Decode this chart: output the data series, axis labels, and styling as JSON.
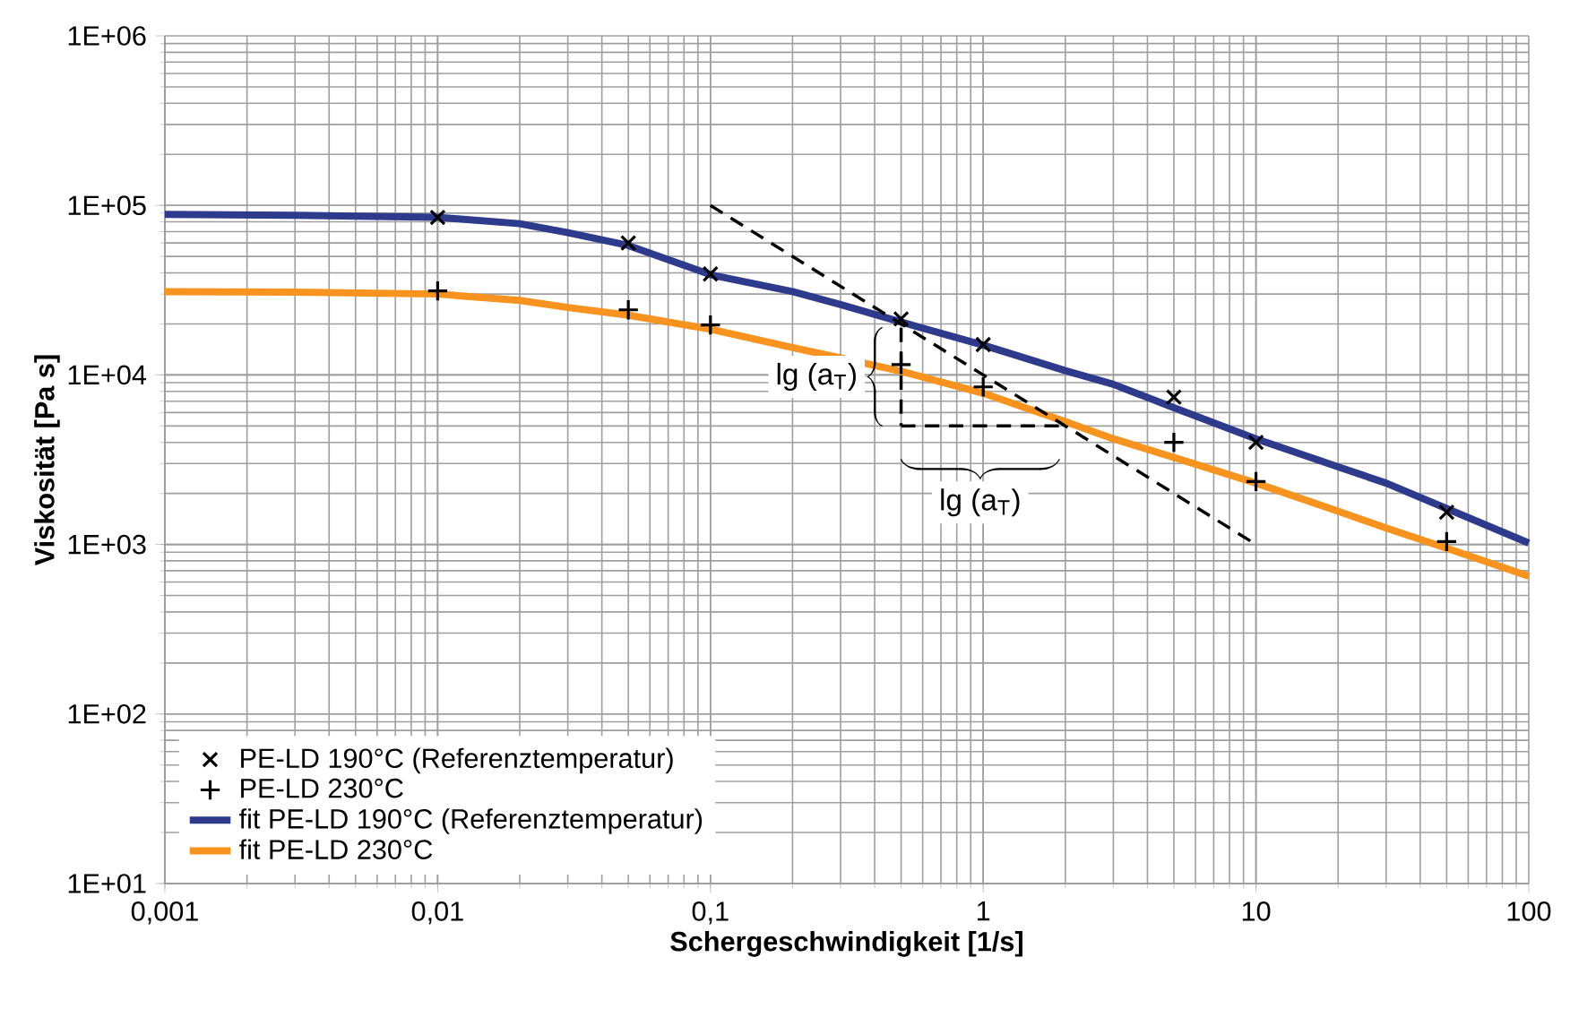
{
  "chart_data": {
    "type": "scatter",
    "xlabel": "Schergeschwindigkeit [1/s]",
    "ylabel": "Viskosität [Pa s]",
    "log": "xy",
    "grid": true,
    "legend": "bottom left",
    "xlim": [
      0.001,
      100
    ],
    "ylim": [
      10,
      1000000
    ],
    "xticks": [
      {
        "value": 0.001,
        "label": "0,001"
      },
      {
        "value": 0.01,
        "label": "0,01"
      },
      {
        "value": 0.1,
        "label": "0,1"
      },
      1,
      10,
      100
    ],
    "yticks": [
      {
        "value": 10,
        "label": "1E+01"
      },
      {
        "value": 100,
        "label": "1E+02"
      },
      {
        "value": 1000,
        "label": "1E+03"
      },
      {
        "value": 10000,
        "label": "1E+04"
      },
      {
        "value": 100000,
        "label": "1E+05"
      },
      {
        "value": 1000000,
        "label": "1E+06"
      }
    ],
    "series": [
      {
        "name": "PE-LD 190°C (Referenztemperatur)",
        "marker": "cross",
        "color": "#000000",
        "x": [
          0.01,
          0.05,
          0.1,
          0.5,
          1,
          5,
          10,
          50
        ],
        "values": [
          85000,
          60000,
          39400,
          21400,
          15100,
          7400,
          4000,
          1550
        ]
      },
      {
        "name": "PE-LD 230°C",
        "marker": "plus",
        "color": "#000000",
        "x": [
          0.01,
          0.05,
          0.1,
          0.5,
          1,
          5,
          10,
          50
        ],
        "values": [
          31300,
          24200,
          19700,
          11500,
          8500,
          4000,
          2350,
          1040
        ]
      },
      {
        "name": "fit PE-LD 190°C (Referenztemperatur)",
        "type": "line",
        "color": "#2e3a8c",
        "x": [
          0.001,
          0.003,
          0.01,
          0.02,
          0.03,
          0.05,
          0.1,
          0.2,
          0.3,
          0.5,
          1,
          2,
          3,
          5,
          10,
          20,
          30,
          50,
          100
        ],
        "values": [
          88600,
          87500,
          85000,
          78000,
          69000,
          58000,
          39000,
          31000,
          26000,
          20500,
          15000,
          10600,
          8800,
          6400,
          4200,
          2870,
          2300,
          1630,
          1020
        ]
      },
      {
        "name": "fit PE-LD 230°C",
        "type": "line",
        "color": "#f7931e",
        "x": [
          0.001,
          0.003,
          0.01,
          0.02,
          0.03,
          0.05,
          0.1,
          0.2,
          0.3,
          0.5,
          1,
          2,
          3,
          5,
          10,
          20,
          30,
          50,
          100
        ],
        "values": [
          31000,
          30800,
          30000,
          27500,
          25000,
          22500,
          18600,
          14500,
          12600,
          10500,
          7800,
          5300,
          4200,
          3260,
          2300,
          1570,
          1250,
          950,
          650
        ]
      },
      {
        "type": "line",
        "line_style": "dashed",
        "color": "#000000",
        "x": [
          0.1,
          10
        ],
        "values": [
          100000,
          1000
        ]
      },
      {
        "type": "line",
        "line_style": "dashed",
        "color": "#000000",
        "x": [
          0.5,
          0.5
        ],
        "values": [
          19000,
          5000
        ]
      },
      {
        "type": "line",
        "line_style": "dashed",
        "color": "#000000",
        "x": [
          0.5,
          1.9
        ],
        "values": [
          5000,
          5000
        ]
      }
    ],
    "annotations": [
      "lg (a$_{T}$)",
      "lg (a$_{T}$)"
    ]
  }
}
